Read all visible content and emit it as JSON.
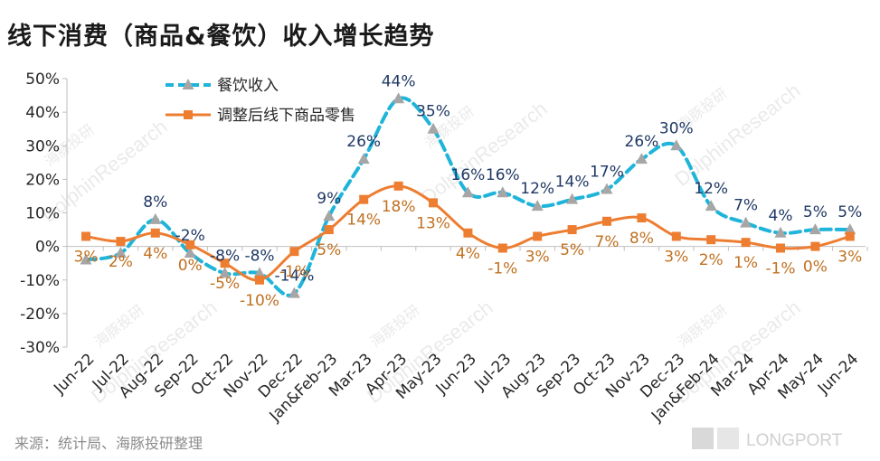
{
  "title": "线下消费（商品&餐饮）收入增长趋势",
  "source": "来源：统计局、海豚投研整理",
  "chart_data": {
    "type": "line",
    "title": "线下消费（商品&餐饮）收入增长趋势",
    "xlabel": "",
    "ylabel": "",
    "ylim": [
      -30,
      50
    ],
    "yticks": [
      -30,
      -20,
      -10,
      0,
      10,
      20,
      30,
      40,
      50
    ],
    "ytick_labels": [
      "-30%",
      "-20%",
      "-10%",
      "0%",
      "10%",
      "20%",
      "30%",
      "40%",
      "50%"
    ],
    "grid": false,
    "legend_position": "top-left",
    "categories": [
      "Jun-22",
      "Jul-22",
      "Aug-22",
      "Sep-22",
      "Oct-22",
      "Nov-22",
      "Dec-22",
      "Jan&Feb-23",
      "Mar-23",
      "Apr-23",
      "May-23",
      "Jun-23",
      "Jul-23",
      "Aug-23",
      "Sep-23",
      "Oct-23",
      "Nov-23",
      "Dec-23",
      "Jan&Feb-24",
      "Mar-24",
      "Apr-24",
      "May-24",
      "Jun-24"
    ],
    "series": [
      {
        "name": "餐饮收入",
        "color": "#1fb4d9",
        "style": "dashed-with-triangles",
        "values": [
          -4,
          -2,
          8,
          -2,
          -8,
          -8,
          -14,
          9,
          26,
          44,
          35,
          16,
          16,
          12,
          14,
          17,
          26,
          30,
          12,
          7,
          4,
          5,
          5
        ],
        "labels": [
          "",
          "",
          "8%",
          "-2%",
          "-8%",
          "-8%",
          "-14%",
          "9%",
          "26%",
          "44%",
          "35%",
          "16%",
          "16%",
          "12%",
          "14%",
          "17%",
          "26%",
          "30%",
          "12%",
          "7%",
          "4%",
          "5%",
          "5%"
        ],
        "label_color": "#1f3864"
      },
      {
        "name": "调整后线下商品零售",
        "color": "#ed7d31",
        "style": "solid-with-squares",
        "values": [
          3,
          1.5,
          4,
          0.5,
          -5,
          -10,
          -1.5,
          5,
          14,
          18,
          13,
          4,
          -0.5,
          3,
          5,
          7.5,
          8.5,
          3,
          2,
          1.2,
          -0.5,
          0,
          3
        ],
        "labels": [
          "3%",
          "2%",
          "4%",
          "0%",
          "-5%",
          "-10%",
          "-1%",
          "5%",
          "14%",
          "18%",
          "13%",
          "4%",
          "-1%",
          "3%",
          "5%",
          "7%",
          "8%",
          "3%",
          "2%",
          "1%",
          "-1%",
          "0%",
          "3%"
        ],
        "label_color": "#c07020"
      }
    ]
  },
  "watermarks": [
    "海豚投研",
    "DolphinResearch"
  ],
  "brand": {
    "name": "LONGPORT"
  }
}
